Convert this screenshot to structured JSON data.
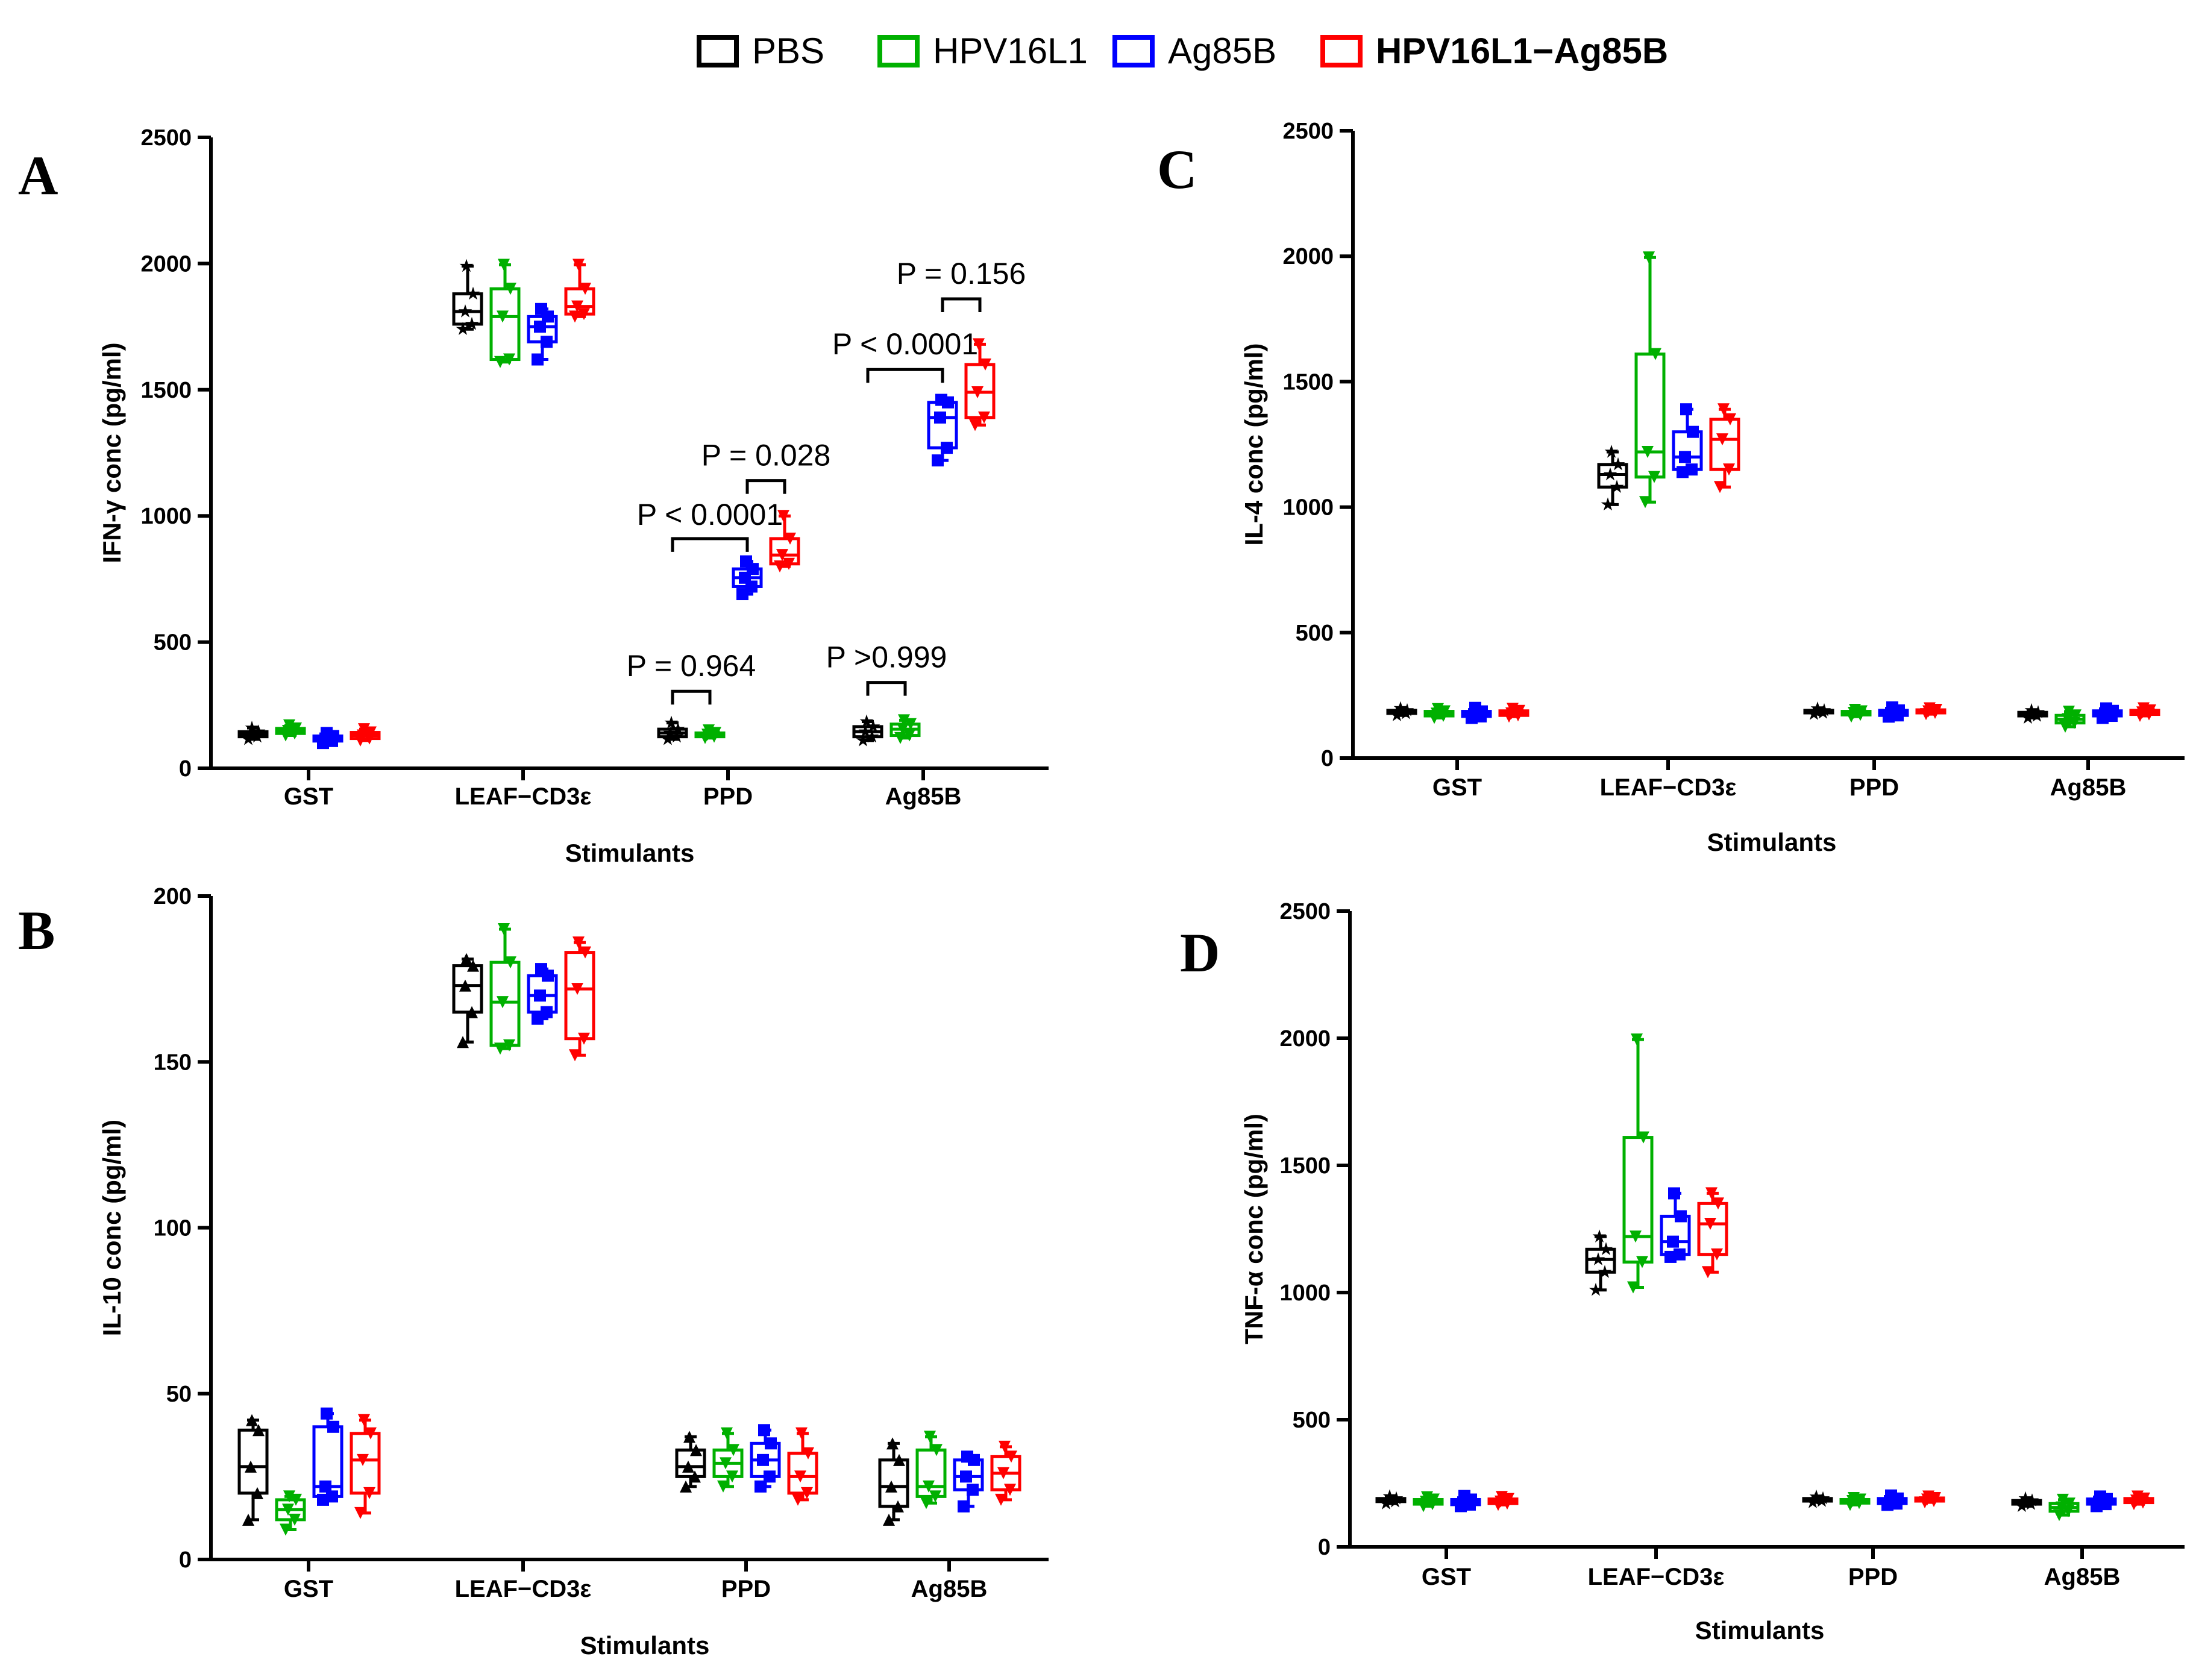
{
  "legend": [
    {
      "label": "PBS",
      "color": "#000000",
      "bold": false
    },
    {
      "label": "HPV16L1",
      "color": "#00b000",
      "bold": false
    },
    {
      "label": "Ag85B",
      "color": "#0000ff",
      "bold": false
    },
    {
      "label": "HPV16L1−Ag85B",
      "color": "#ff0000",
      "bold": true
    }
  ],
  "chart_data": [
    {
      "panel": "A",
      "type": "box",
      "xlabel": "Stimulants",
      "ylabel": "IFN-γ conc (pg/ml)",
      "ylim": [
        0,
        2500
      ],
      "yticks": [
        "0",
        "500",
        "1000",
        "1500",
        "2000",
        "2500"
      ],
      "ytick_values": [
        0,
        500,
        1000,
        1500,
        2000,
        2500
      ],
      "categories": [
        "GST",
        "LEAF−CD3ε",
        "PPD",
        "Ag85B"
      ],
      "series": [
        {
          "name": "PBS",
          "stats": [
            [
              115,
              125,
              135,
              145,
              160
            ],
            [
              1740,
              1760,
              1810,
              1880,
              1990
            ],
            [
              115,
              125,
              140,
              155,
              180
            ],
            [
              110,
              125,
              145,
              165,
              185
            ]
          ]
        },
        {
          "name": "HPV16L1",
          "stats": [
            [
              130,
              138,
              148,
              158,
              170
            ],
            [
              1610,
              1620,
              1790,
              1900,
              1995
            ],
            [
              120,
              125,
              133,
              140,
              150
            ],
            [
              120,
              130,
              155,
              175,
              190
            ]
          ]
        },
        {
          "name": "Ag85B",
          "stats": [
            [
              100,
              108,
              118,
              128,
              140
            ],
            [
              1620,
              1690,
              1750,
              1790,
              1820
            ],
            [
              690,
              720,
              755,
              790,
              820
            ],
            [
              1220,
              1270,
              1390,
              1450,
              1460
            ]
          ]
        },
        {
          "name": "HPV16L1-Ag85B",
          "stats": [
            [
              110,
              118,
              130,
              142,
              155
            ],
            [
              1790,
              1800,
              1830,
              1900,
              1995
            ],
            [
              800,
              810,
              845,
              910,
              1000
            ],
            [
              1360,
              1390,
              1490,
              1600,
              1680
            ]
          ]
        }
      ],
      "annotations": [
        {
          "text": "P = 0.964",
          "cat": 2,
          "a": 0,
          "b": 1,
          "bracket_y": 305,
          "text_y": 365
        },
        {
          "text": "P >0.999",
          "cat": 3,
          "a": 0,
          "b": 1,
          "bracket_y": 340,
          "text_y": 400
        },
        {
          "text": "P  < 0.0001",
          "cat": 2,
          "a": 0,
          "b": 2,
          "bracket_y": 910,
          "text_y": 965
        },
        {
          "text": "P = 0.028",
          "cat": 2,
          "a": 2,
          "b": 3,
          "bracket_y": 1140,
          "text_y": 1200
        },
        {
          "text": "P  < 0.0001",
          "cat": 3,
          "a": 0,
          "b": 2,
          "bracket_y": 1580,
          "text_y": 1640
        },
        {
          "text": "P = 0.156",
          "cat": 3,
          "a": 2,
          "b": 3,
          "bracket_y": 1860,
          "text_y": 1920
        }
      ]
    },
    {
      "panel": "B",
      "type": "box",
      "xlabel": "Stimulants",
      "ylabel": "IL-10 conc (pg/ml)",
      "ylim": [
        0,
        200
      ],
      "yticks": [
        "0",
        "50",
        "100",
        "150",
        "200"
      ],
      "ytick_values": [
        0,
        50,
        100,
        150,
        200
      ],
      "categories": [
        "GST",
        "LEAF−CD3ε",
        "PPD",
        "Ag85B"
      ],
      "series": [
        {
          "name": "PBS",
          "stats": [
            [
              12,
              20,
              28,
              39,
              42
            ],
            [
              156,
              165,
              173,
              179,
              181
            ],
            [
              22,
              25,
              28,
              33,
              37
            ],
            [
              12,
              16,
              22,
              30,
              35
            ]
          ]
        },
        {
          "name": "HPV16L1",
          "stats": [
            [
              9,
              12,
              15,
              18,
              19
            ],
            [
              154,
              155,
              168,
              180,
              190
            ],
            [
              22,
              25,
              29,
              33,
              38
            ],
            [
              17,
              19,
              22,
              33,
              37
            ]
          ]
        },
        {
          "name": "Ag85B",
          "stats": [
            [
              18,
              19,
              22,
              40,
              44
            ],
            [
              163,
              165,
              170,
              176,
              178
            ],
            [
              22,
              25,
              30,
              35,
              39
            ],
            [
              16,
              21,
              25,
              30,
              31
            ]
          ]
        },
        {
          "name": "HPV16L1-Ag85B",
          "stats": [
            [
              14,
              20,
              30,
              38,
              42
            ],
            [
              152,
              157,
              172,
              183,
              186
            ],
            [
              18,
              20,
              25,
              32,
              38
            ],
            [
              18,
              21,
              26,
              31,
              34
            ]
          ]
        }
      ],
      "annotations": []
    },
    {
      "panel": "C",
      "type": "box",
      "xlabel": "Stimulants",
      "ylabel": "IL-4 conc (pg/ml)",
      "ylim": [
        0,
        2500
      ],
      "yticks": [
        "0",
        "500",
        "1000",
        "1500",
        "2000",
        "2500"
      ],
      "ytick_values": [
        0,
        500,
        1000,
        1500,
        2000,
        2500
      ],
      "categories": [
        "GST",
        "LEAF−CD3ε",
        "PPD",
        "Ag85B"
      ],
      "series": [
        {
          "name": "PBS",
          "stats": [
            [
              170,
              178,
              185,
              190,
              198
            ],
            [
              1010,
              1080,
              1130,
              1170,
              1220
            ],
            [
              175,
              180,
              185,
              190,
              197
            ],
            [
              160,
              168,
              175,
              182,
              190
            ]
          ]
        },
        {
          "name": "HPV16L1",
          "stats": [
            [
              160,
              168,
              177,
              186,
              195
            ],
            [
              1020,
              1120,
              1220,
              1610,
              1995
            ],
            [
              165,
              172,
              180,
              186,
              192
            ],
            [
              125,
              140,
              155,
              170,
              185
            ]
          ]
        },
        {
          "name": "Ag85B",
          "stats": [
            [
              160,
              166,
              175,
              186,
              200
            ],
            [
              1140,
              1150,
              1200,
              1300,
              1390
            ],
            [
              165,
              170,
              180,
              190,
              202
            ],
            [
              160,
              168,
              178,
              188,
              198
            ]
          ]
        },
        {
          "name": "HPV16L1-Ag85B",
          "stats": [
            [
              165,
              170,
              178,
              188,
              196
            ],
            [
              1080,
              1150,
              1270,
              1350,
              1390
            ],
            [
              175,
              180,
              186,
              192,
              198
            ],
            [
              168,
              174,
              182,
              190,
              198
            ]
          ]
        }
      ],
      "annotations": []
    },
    {
      "panel": "D",
      "type": "box",
      "xlabel": "Stimulants",
      "ylabel": "TNF-α conc (pg/ml)",
      "ylim": [
        0,
        2500
      ],
      "yticks": [
        "0",
        "500",
        "1000",
        "1500",
        "2000",
        "2500"
      ],
      "ytick_values": [
        0,
        500,
        1000,
        1500,
        2000,
        2500
      ],
      "categories": [
        "GST",
        "LEAF−CD3ε",
        "PPD",
        "Ag85B"
      ],
      "series": [
        {
          "name": "PBS",
          "stats": [
            [
              170,
              178,
              185,
              190,
              198
            ],
            [
              1010,
              1080,
              1130,
              1170,
              1220
            ],
            [
              175,
              180,
              185,
              190,
              197
            ],
            [
              160,
              168,
              175,
              182,
              190
            ]
          ]
        },
        {
          "name": "HPV16L1",
          "stats": [
            [
              160,
              168,
              177,
              186,
              195
            ],
            [
              1020,
              1120,
              1220,
              1610,
              1995
            ],
            [
              165,
              172,
              180,
              186,
              192
            ],
            [
              125,
              140,
              155,
              170,
              185
            ]
          ]
        },
        {
          "name": "Ag85B",
          "stats": [
            [
              160,
              166,
              175,
              186,
              200
            ],
            [
              1140,
              1150,
              1200,
              1300,
              1390
            ],
            [
              165,
              170,
              180,
              190,
              202
            ],
            [
              160,
              168,
              178,
              188,
              198
            ]
          ]
        },
        {
          "name": "HPV16L1-Ag85B",
          "stats": [
            [
              165,
              170,
              178,
              188,
              196
            ],
            [
              1080,
              1150,
              1270,
              1350,
              1390
            ],
            [
              175,
              180,
              186,
              192,
              198
            ],
            [
              168,
              174,
              182,
              190,
              198
            ]
          ]
        }
      ],
      "annotations": []
    }
  ]
}
